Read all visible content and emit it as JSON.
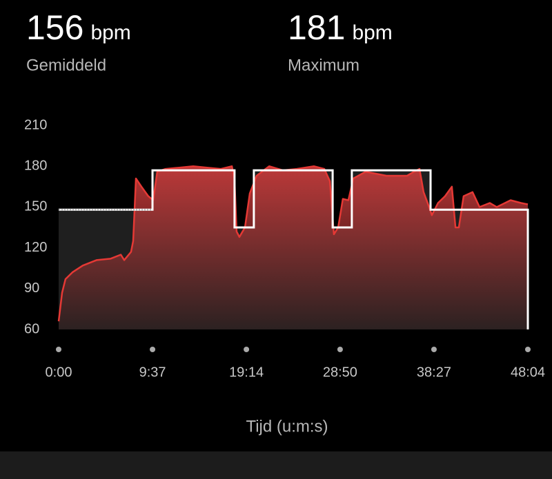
{
  "stats": [
    {
      "value": "156",
      "unit": "bpm",
      "label": "Gemiddeld"
    },
    {
      "value": "181",
      "unit": "bpm",
      "label": "Maximum"
    }
  ],
  "chart_data": {
    "type": "line",
    "x_label": "Tijd (u:m:s)",
    "xlim": [
      0,
      2884
    ],
    "xticks": [
      {
        "value": 0,
        "label": "0:00"
      },
      {
        "value": 577,
        "label": "9:37"
      },
      {
        "value": 1154,
        "label": "19:14"
      },
      {
        "value": 1730,
        "label": "28:50"
      },
      {
        "value": 2307,
        "label": "38:27"
      },
      {
        "value": 2884,
        "label": "48:04"
      }
    ],
    "ylim": [
      60,
      210
    ],
    "yticks": [
      60,
      90,
      120,
      150,
      180,
      210
    ],
    "grid": false,
    "series": [
      {
        "name": "Hartslag",
        "color": "#e53935",
        "x": [
          0,
          21,
          42,
          85,
          148,
          233,
          318,
          382,
          403,
          445,
          458,
          475,
          509,
          551,
          581,
          606,
          657,
          742,
          827,
          912,
          997,
          1065,
          1081,
          1094,
          1111,
          1145,
          1175,
          1217,
          1294,
          1378,
          1463,
          1569,
          1633,
          1667,
          1692,
          1718,
          1747,
          1781,
          1811,
          1887,
          2015,
          2142,
          2184,
          2218,
          2243,
          2277,
          2294,
          2332,
          2375,
          2417,
          2439,
          2460,
          2489,
          2544,
          2587,
          2650,
          2693,
          2778,
          2842,
          2884
        ],
        "values": [
          66,
          87,
          97,
          102,
          107,
          111,
          112,
          115,
          111,
          117,
          125,
          171,
          165,
          158,
          155,
          176,
          178,
          179,
          180,
          179,
          178,
          180,
          170,
          132,
          128,
          135,
          160,
          173,
          180,
          177,
          178,
          180,
          178,
          169,
          130,
          135,
          156,
          155,
          171,
          176,
          173,
          173,
          176,
          178,
          161,
          150,
          144,
          153,
          158,
          165,
          135,
          135,
          158,
          161,
          150,
          153,
          150,
          155,
          153,
          152
        ]
      },
      {
        "name": "Doelzone",
        "color": "#ffffff",
        "x": [
          0,
          577,
          577,
          1081,
          1081,
          1200,
          1200,
          1684,
          1684,
          1802,
          1802,
          2286,
          2286,
          2884
        ],
        "values": [
          148,
          148,
          177,
          177,
          135,
          135,
          177,
          177,
          135,
          135,
          177,
          177,
          148,
          148
        ]
      }
    ]
  }
}
